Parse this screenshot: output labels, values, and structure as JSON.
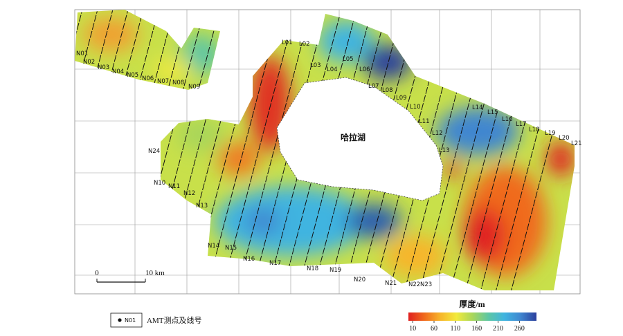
{
  "lake_name": "哈拉湖",
  "line_labels": [
    "N01",
    "N02",
    "N03",
    "N04",
    "N05",
    "N06",
    "N07",
    "N08",
    "N09",
    "N24",
    "N10",
    "N11",
    "N12",
    "N13",
    "N14",
    "N15",
    "N16",
    "N17",
    "N18",
    "N19",
    "N20",
    "N21",
    "N22",
    "N23",
    "L01",
    "L02",
    "L03",
    "L04",
    "L05",
    "L06",
    "L07",
    "L08",
    "L09",
    "L10",
    "L11",
    "L12",
    "L13",
    "L14",
    "L15",
    "L16",
    "L17",
    "L18",
    "L19",
    "L20",
    "L21"
  ],
  "scale_bar": {
    "start": "0",
    "end": "10 km"
  },
  "legend": {
    "symbol_label": "N01",
    "text": "AMT测点及线号"
  },
  "colorbar": {
    "title": "厚度/m",
    "lim": [
      0,
      300
    ],
    "ticks": [
      10,
      60,
      110,
      160,
      210,
      260
    ],
    "colors": [
      "#e02020",
      "#f06a1c",
      "#f7b52a",
      "#f2ea3c",
      "#a9d65a",
      "#5cc6a4",
      "#3fb4e0",
      "#3f86d0",
      "#2b3f9c"
    ]
  }
}
